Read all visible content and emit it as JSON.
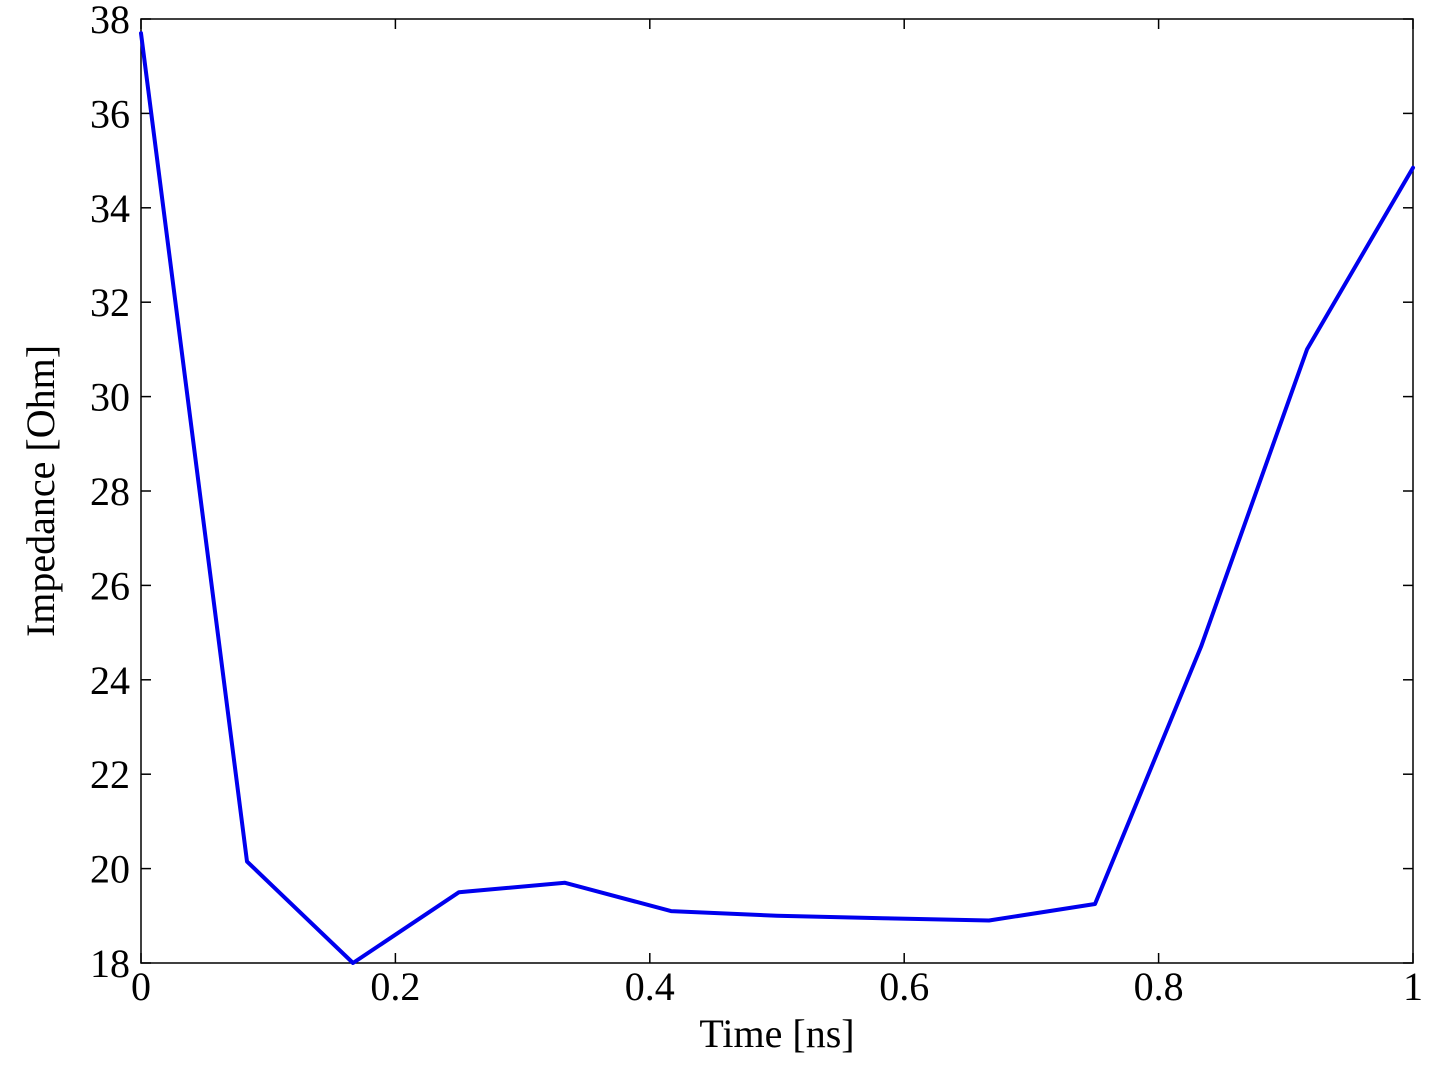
{
  "chart_data": {
    "type": "line",
    "title": "",
    "xlabel": "Time [ns]",
    "ylabel": "Impedance [Ohm]",
    "xlim": [
      0,
      1
    ],
    "ylim": [
      18,
      38
    ],
    "xticks": [
      0,
      0.2,
      0.4,
      0.6,
      0.8,
      1
    ],
    "xtick_labels": [
      "0",
      "0.2",
      "0.4",
      "0.6",
      "0.8",
      "1"
    ],
    "yticks": [
      18,
      20,
      22,
      24,
      26,
      28,
      30,
      32,
      34,
      36,
      38
    ],
    "ytick_labels": [
      "18",
      "20",
      "22",
      "24",
      "26",
      "28",
      "30",
      "32",
      "34",
      "36",
      "38"
    ],
    "grid": false,
    "legend": "none",
    "series": [
      {
        "color": "#0000ee",
        "x": [
          0,
          0.0833,
          0.1667,
          0.25,
          0.3333,
          0.4167,
          0.5,
          0.5833,
          0.6667,
          0.75,
          0.8333,
          0.9167,
          1.0
        ],
        "y": [
          37.7,
          20.15,
          18.0,
          19.5,
          19.7,
          19.1,
          19.0,
          18.95,
          18.9,
          19.25,
          24.7,
          31.0,
          34.85
        ]
      }
    ]
  }
}
